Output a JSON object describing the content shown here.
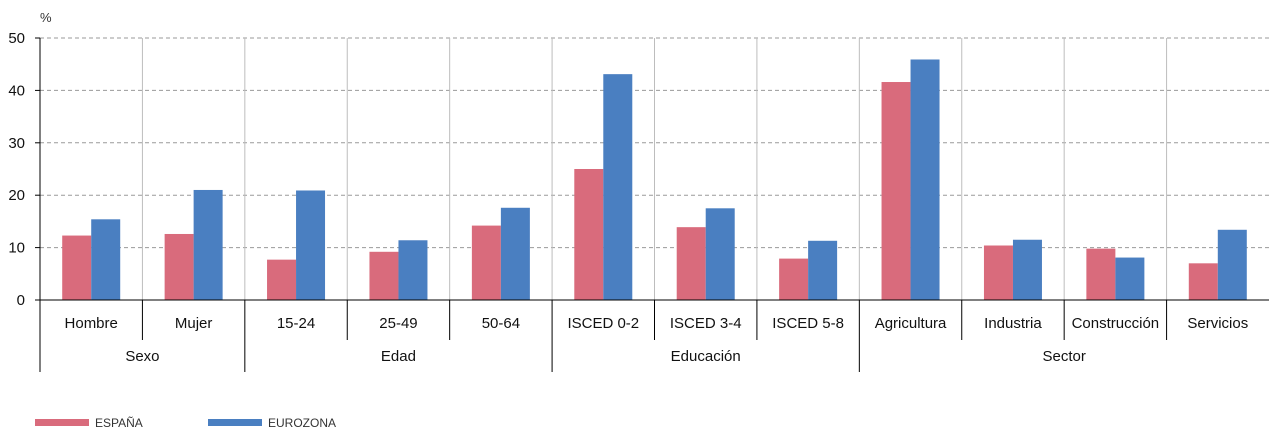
{
  "chart_data": {
    "type": "bar",
    "y_unit": "%",
    "ylim": [
      0,
      50
    ],
    "yticks": [
      0,
      10,
      20,
      30,
      40,
      50
    ],
    "grid": "horizontal dashed",
    "legend_position": "bottom-left",
    "categories": [
      "Hombre",
      "Mujer",
      "15-24",
      "25-49",
      "50-64",
      "ISCED 0-2",
      "ISCED 3-4",
      "ISCED 5-8",
      "Agricultura",
      "Industria",
      "Construcción",
      "Servicios"
    ],
    "groups": [
      {
        "label": "Sexo",
        "count": 2
      },
      {
        "label": "Edad",
        "count": 3
      },
      {
        "label": "Educación",
        "count": 3
      },
      {
        "label": "Sector",
        "count": 4
      }
    ],
    "series": [
      {
        "name": "ESPAÑA",
        "color": "#d96b7c",
        "values": [
          12.3,
          12.6,
          7.7,
          9.2,
          14.2,
          25.0,
          13.9,
          7.9,
          41.6,
          10.4,
          9.8,
          7.0
        ]
      },
      {
        "name": "EUROZONA",
        "color": "#4a7fc1",
        "values": [
          15.4,
          21.0,
          20.9,
          11.4,
          17.6,
          43.1,
          17.5,
          11.3,
          45.9,
          11.5,
          8.1,
          13.4
        ]
      }
    ]
  }
}
